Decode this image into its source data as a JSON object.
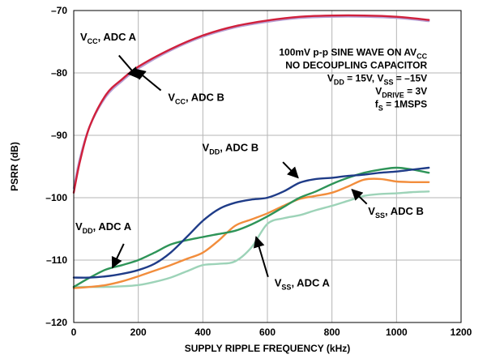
{
  "chart_data": {
    "type": "line",
    "xlabel": "SUPPLY RIPPLE FREQUENCY (kHz)",
    "ylabel": "PSRR (dB)",
    "xlim": [
      0,
      1200
    ],
    "ylim": [
      -120,
      -70
    ],
    "xticks": [
      0,
      200,
      400,
      600,
      800,
      1000,
      1200
    ],
    "yticks": [
      -120,
      -110,
      -100,
      -90,
      -80,
      -70
    ],
    "x_tick_labels": [
      "0",
      "200",
      "400",
      "600",
      "800",
      "1000",
      "1200"
    ],
    "y_tick_labels": [
      "–120",
      "–110",
      "–100",
      "–90",
      "–80",
      "–70"
    ],
    "grid": true,
    "legend": "none",
    "annotation_lines": [
      {
        "id": "info-line-1",
        "parts": [
          {
            "t": "100mV p-p SINE WAVE ON AV"
          },
          {
            "t": "CC",
            "sub": true
          }
        ]
      },
      {
        "id": "info-line-2",
        "parts": [
          {
            "t": "NO DECOUPLING CAPACITOR"
          }
        ]
      },
      {
        "id": "info-line-3",
        "parts": [
          {
            "t": "V"
          },
          {
            "t": "DD",
            "sub": true
          },
          {
            "t": " = 15V, V"
          },
          {
            "t": "SS",
            "sub": true
          },
          {
            "t": " = –15V"
          }
        ]
      },
      {
        "id": "info-line-4",
        "parts": [
          {
            "t": "V"
          },
          {
            "t": "DRIVE",
            "sub": true
          },
          {
            "t": " = 3V"
          }
        ]
      },
      {
        "id": "info-line-5",
        "parts": [
          {
            "t": "f"
          },
          {
            "t": "S",
            "sub": true
          },
          {
            "t": " = 1MSPS"
          }
        ]
      }
    ],
    "series": [
      {
        "name": "VCC, ADC A",
        "label_main": "V",
        "label_sub": "CC",
        "label_tail": ", ADC A",
        "color": "#d0203c",
        "x": [
          0,
          20,
          50,
          100,
          150,
          200,
          300,
          400,
          500,
          600,
          700,
          800,
          900,
          1000,
          1100
        ],
        "y": [
          -99.2,
          -94,
          -88.5,
          -83.5,
          -81,
          -79,
          -76.2,
          -74,
          -72.5,
          -71.6,
          -71,
          -70.8,
          -70.8,
          -71,
          -71.5
        ]
      },
      {
        "name": "VCC, ADC B",
        "label_main": "V",
        "label_sub": "CC",
        "label_tail": ", ADC B",
        "color": "#b79fd3",
        "x": [
          0,
          20,
          50,
          100,
          150,
          200,
          300,
          400,
          500,
          600,
          700,
          800,
          900,
          1000,
          1100
        ],
        "y": [
          -98.5,
          -93.5,
          -88.5,
          -83.8,
          -81.3,
          -79.3,
          -76.4,
          -74.2,
          -72.7,
          -71.8,
          -71.2,
          -71,
          -71,
          -71.2,
          -71.7
        ]
      },
      {
        "name": "VDD, ADC B",
        "label_main": "V",
        "label_sub": "DD",
        "label_tail": ", ADC B",
        "color": "#1f3c88",
        "x": [
          0,
          50,
          100,
          150,
          200,
          250,
          300,
          350,
          400,
          450,
          500,
          550,
          600,
          650,
          700,
          750,
          800,
          850,
          900,
          950,
          1000,
          1050,
          1100
        ],
        "y": [
          -112.8,
          -112.8,
          -112.6,
          -112.2,
          -111.6,
          -110.6,
          -108.8,
          -106.3,
          -103.7,
          -101.8,
          -100.8,
          -100.3,
          -100,
          -99,
          -97.6,
          -97,
          -96.8,
          -96.5,
          -96.3,
          -96,
          -95.8,
          -95.5,
          -95.2
        ]
      },
      {
        "name": "VDD, ADC A",
        "label_main": "V",
        "label_sub": "DD",
        "label_tail": ", ADC A",
        "color": "#2e9458",
        "x": [
          0,
          50,
          100,
          150,
          200,
          250,
          300,
          350,
          400,
          450,
          500,
          550,
          600,
          650,
          700,
          750,
          800,
          850,
          900,
          950,
          1000,
          1050,
          1100
        ],
        "y": [
          -114.3,
          -112.8,
          -111.5,
          -110.8,
          -110,
          -108.8,
          -107.5,
          -106.8,
          -106.3,
          -105.8,
          -105.3,
          -104.3,
          -103,
          -101.5,
          -100,
          -99,
          -97.8,
          -96.8,
          -96,
          -95.5,
          -95.2,
          -95.5,
          -96
        ]
      },
      {
        "name": "VSS, ADC B",
        "label_main": "V",
        "label_sub": "SS",
        "label_tail": ", ADC B",
        "color": "#f28d3c",
        "x": [
          0,
          50,
          100,
          150,
          200,
          250,
          300,
          350,
          400,
          450,
          500,
          550,
          600,
          650,
          700,
          750,
          800,
          850,
          900,
          950,
          1000,
          1050,
          1100
        ],
        "y": [
          -114.5,
          -114.3,
          -114,
          -113.4,
          -112.6,
          -111.7,
          -110.8,
          -109.8,
          -108.8,
          -106.8,
          -104.5,
          -103.5,
          -102.5,
          -101.3,
          -100.2,
          -99.7,
          -99.2,
          -98.2,
          -97.1,
          -97,
          -97.4,
          -97.5,
          -97.5
        ]
      },
      {
        "name": "VSS, ADC A",
        "label_main": "V",
        "label_sub": "SS",
        "label_tail": ", ADC A",
        "color": "#9dd3b8",
        "x": [
          0,
          50,
          100,
          150,
          200,
          250,
          300,
          350,
          400,
          450,
          500,
          550,
          600,
          650,
          700,
          750,
          800,
          850,
          900,
          950,
          1000,
          1050,
          1100
        ],
        "y": [
          -114.3,
          -114.3,
          -114.3,
          -114.2,
          -114,
          -113.5,
          -112.8,
          -111.8,
          -110.8,
          -110.6,
          -110.2,
          -108,
          -104.2,
          -103.3,
          -102.8,
          -102,
          -101.3,
          -100.5,
          -99.7,
          -99.4,
          -99.3,
          -99.1,
          -99
        ]
      }
    ],
    "series_labels": [
      {
        "series": 0,
        "id": "label-vcc-adc-a",
        "lx": 20,
        "ly": -74.8,
        "ax1": 140,
        "ay1": -77.2,
        "ax2": 200,
        "ay2": -80.8
      },
      {
        "series": 1,
        "id": "label-vcc-adc-b",
        "lx": 292,
        "ly": -84.5,
        "ax1": 270,
        "ay1": -82.8,
        "ax2": 190,
        "ay2": -79.4
      },
      {
        "series": 2,
        "id": "label-vdd-adc-b",
        "lx": 398,
        "ly": -92.5,
        "ax1": 648,
        "ay1": -94.3,
        "ax2": 695,
        "ay2": -96.8
      },
      {
        "series": 3,
        "id": "label-vdd-adc-a",
        "lx": 5,
        "ly": -105.2,
        "ax1": 155,
        "ay1": -107.4,
        "ax2": 120,
        "ay2": -111.2
      },
      {
        "series": 4,
        "id": "label-vss-adc-b",
        "lx": 912,
        "ly": -102.7,
        "ax1": 908,
        "ay1": -101,
        "ax2": 862,
        "ay2": -98.7
      },
      {
        "series": 5,
        "id": "label-vss-adc-a",
        "lx": 622,
        "ly": -114.2,
        "ax1": 602,
        "ay1": -112.7,
        "ax2": 565,
        "ay2": -106.3
      }
    ]
  }
}
